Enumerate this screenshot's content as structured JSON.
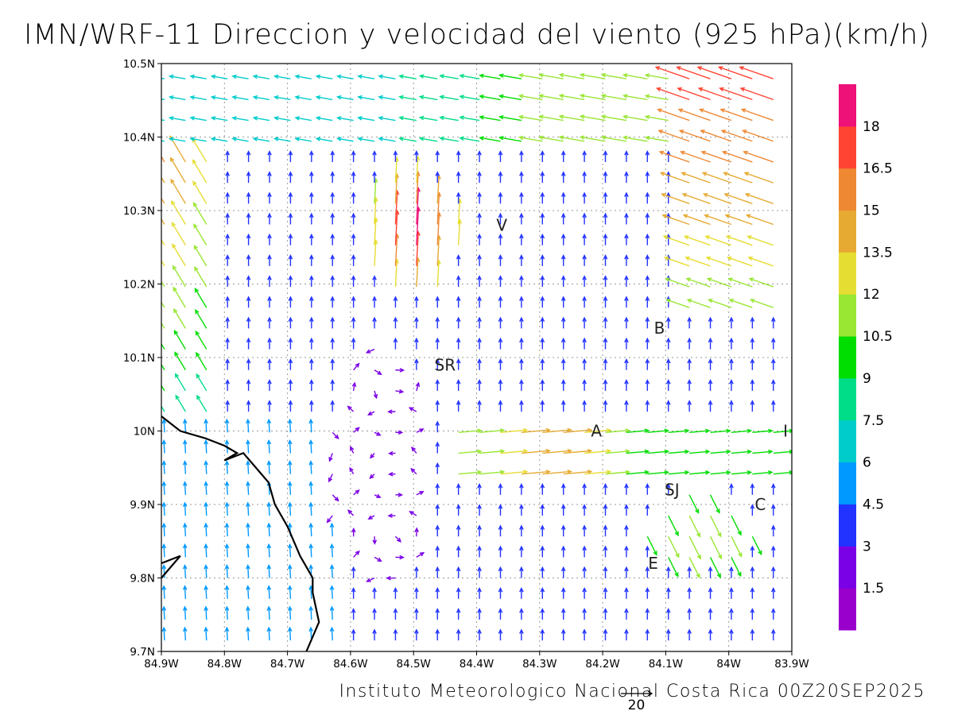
{
  "title": "IMN/WRF-11 Direccion y velocidad del viento (925 hPa)(km/h)",
  "footer": "Instituto Meteorologico Nacional Costa Rica 00Z20SEP2025",
  "reference_vector": {
    "label": "20",
    "value": 20
  },
  "map": {
    "lon_range": [
      -84.9,
      -83.9
    ],
    "lat_range": [
      9.7,
      10.5
    ],
    "x_tick_labels": [
      "84.9W",
      "84.8W",
      "84.7W",
      "84.6W",
      "84.5W",
      "84.4W",
      "84.3W",
      "84.2W",
      "84.1W",
      "84W",
      "83.9W"
    ],
    "y_tick_labels": [
      "9.7N",
      "9.8N",
      "9.9N",
      "10N",
      "10.1N",
      "10.2N",
      "10.3N",
      "10.4N",
      "10.5N"
    ],
    "grid": true,
    "place_labels": [
      {
        "label": "V",
        "lon": -84.36,
        "lat": 10.28
      },
      {
        "label": "SR",
        "lon": -84.45,
        "lat": 10.09
      },
      {
        "label": "B",
        "lon": -84.11,
        "lat": 10.14
      },
      {
        "label": "A",
        "lon": -84.21,
        "lat": 10.0
      },
      {
        "label": "I",
        "lon": -83.91,
        "lat": 10.0
      },
      {
        "label": "SJ",
        "lon": -84.09,
        "lat": 9.92
      },
      {
        "label": "C",
        "lon": -83.95,
        "lat": 9.9
      },
      {
        "label": "E",
        "lon": -84.12,
        "lat": 9.82
      }
    ],
    "coastline": [
      [
        [
          -84.9,
          10.02
        ],
        [
          -84.87,
          10.0
        ],
        [
          -84.83,
          9.99
        ],
        [
          -84.8,
          9.98
        ],
        [
          -84.78,
          9.97
        ],
        [
          -84.8,
          9.96
        ],
        [
          -84.77,
          9.97
        ],
        [
          -84.75,
          9.95
        ],
        [
          -84.73,
          9.93
        ],
        [
          -84.72,
          9.9
        ],
        [
          -84.7,
          9.87
        ],
        [
          -84.68,
          9.83
        ],
        [
          -84.66,
          9.8
        ],
        [
          -84.66,
          9.78
        ],
        [
          -84.65,
          9.74
        ],
        [
          -84.67,
          9.7
        ]
      ],
      [
        [
          -84.9,
          9.8
        ],
        [
          -84.87,
          9.83
        ],
        [
          -84.9,
          9.82
        ]
      ]
    ]
  },
  "colorbar": {
    "labels": [
      "1.5",
      "3",
      "4.5",
      "6",
      "7.5",
      "9",
      "10.5",
      "12",
      "13.5",
      "15",
      "16.5",
      "18"
    ],
    "colors": [
      "#9900cc",
      "#7a00e6",
      "#2233ff",
      "#0099ff",
      "#00cccc",
      "#00dd88",
      "#00dd00",
      "#99e633",
      "#e6dd33",
      "#e6aa33",
      "#ee8833",
      "#ff4433",
      "#ee1177"
    ]
  },
  "chart_data": {
    "type": "vector_field",
    "level": "925 hPa",
    "units": "km/h",
    "grid_spacing_deg": 0.033,
    "regions": [
      {
        "region": "North strip (10.40N-10.48N)",
        "direction": "from E, westward flow",
        "speed_kmh": [
          6,
          15
        ]
      },
      {
        "region": "NE corner (10.3N-10.45N, 84.05W-83.9W)",
        "direction": "from SE/E",
        "speed_kmh": [
          10.5,
          16.5
        ]
      },
      {
        "region": "Peak near 84.5W, 10.27N",
        "direction": "southerly",
        "speed_kmh": [
          15,
          19
        ]
      },
      {
        "region": "West coast (84.9W-84.8W)",
        "direction": "from SE",
        "speed_kmh": [
          6,
          13.5
        ]
      },
      {
        "region": "Pacific lowland south of 10N",
        "direction": "southerly",
        "speed_kmh": [
          4.5,
          7.5
        ]
      },
      {
        "region": "Central valley band (9.95N-10.0N)",
        "direction": "from W, eastward flow",
        "speed_kmh": [
          7.5,
          15
        ]
      },
      {
        "region": "Mountains near 84.6W-84.5W",
        "direction": "variable",
        "speed_kmh": [
          1.5,
          4.5
        ]
      },
      {
        "region": "East near 83.95W, 9.85N",
        "direction": "from NW",
        "speed_kmh": [
          9,
          12
        ]
      }
    ]
  }
}
